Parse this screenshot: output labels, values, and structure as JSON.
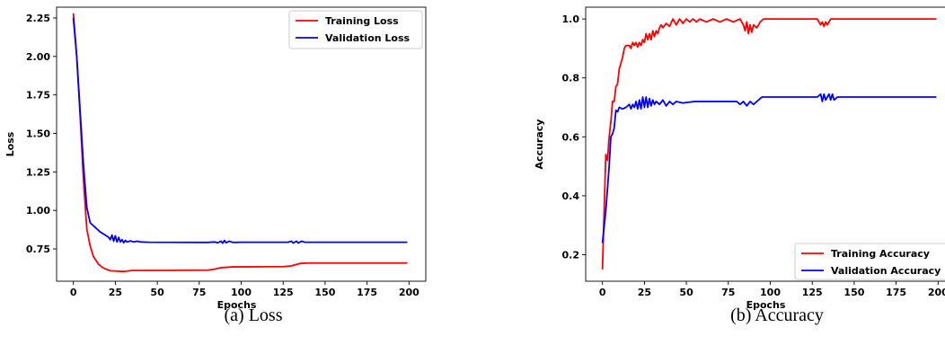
{
  "captions": {
    "a": "(a) Loss",
    "b": "(b) Accuracy"
  },
  "chart_data": [
    {
      "type": "line",
      "xlabel": "Epochs",
      "ylabel": "Loss",
      "xlim": [
        -10,
        210
      ],
      "ylim": [
        0.54,
        2.32
      ],
      "xticks": [
        0,
        25,
        50,
        75,
        100,
        125,
        150,
        175,
        200
      ],
      "yticks": [
        0.75,
        1.0,
        1.25,
        1.5,
        1.75,
        2.0,
        2.25
      ],
      "ytick_labels": [
        "0.75",
        "1.00",
        "1.25",
        "1.50",
        "1.75",
        "2.00",
        "2.25"
      ],
      "legend_position": "top-right",
      "series": [
        {
          "name": "Training Loss",
          "color": "#ff0000",
          "points": [
            [
              0,
              2.28
            ],
            [
              2,
              2.0
            ],
            [
              4,
              1.62
            ],
            [
              6,
              1.2
            ],
            [
              8,
              0.88
            ],
            [
              10,
              0.77
            ],
            [
              12,
              0.7
            ],
            [
              15,
              0.65
            ],
            [
              18,
              0.625
            ],
            [
              22,
              0.608
            ],
            [
              30,
              0.603
            ],
            [
              35,
              0.61
            ],
            [
              50,
              0.61
            ],
            [
              80,
              0.612
            ],
            [
              84,
              0.618
            ],
            [
              88,
              0.628
            ],
            [
              95,
              0.633
            ],
            [
              125,
              0.635
            ],
            [
              130,
              0.64
            ],
            [
              135,
              0.655
            ],
            [
              140,
              0.658
            ],
            [
              199,
              0.658
            ]
          ]
        },
        {
          "name": "Validation Loss",
          "color": "#0000ff",
          "points": [
            [
              0,
              2.25
            ],
            [
              2,
              2.0
            ],
            [
              4,
              1.65
            ],
            [
              6,
              1.3
            ],
            [
              8,
              1.02
            ],
            [
              10,
              0.92
            ],
            [
              13,
              0.89
            ],
            [
              16,
              0.86
            ],
            [
              19,
              0.84
            ],
            [
              21,
              0.825
            ],
            [
              22,
              0.81
            ],
            [
              23,
              0.84
            ],
            [
              24,
              0.8
            ],
            [
              25,
              0.835
            ],
            [
              26,
              0.795
            ],
            [
              27,
              0.825
            ],
            [
              28,
              0.795
            ],
            [
              29,
              0.81
            ],
            [
              30,
              0.79
            ],
            [
              31,
              0.805
            ],
            [
              32,
              0.795
            ],
            [
              34,
              0.802
            ],
            [
              36,
              0.795
            ],
            [
              38,
              0.8
            ],
            [
              40,
              0.795
            ],
            [
              45,
              0.793
            ],
            [
              80,
              0.792
            ],
            [
              84,
              0.795
            ],
            [
              86,
              0.79
            ],
            [
              88,
              0.8
            ],
            [
              89,
              0.787
            ],
            [
              90,
              0.805
            ],
            [
              91,
              0.79
            ],
            [
              93,
              0.8
            ],
            [
              95,
              0.792
            ],
            [
              100,
              0.793
            ],
            [
              128,
              0.793
            ],
            [
              130,
              0.8
            ],
            [
              131,
              0.788
            ],
            [
              133,
              0.8
            ],
            [
              134,
              0.788
            ],
            [
              136,
              0.8
            ],
            [
              138,
              0.793
            ],
            [
              199,
              0.793
            ]
          ]
        }
      ]
    },
    {
      "type": "line",
      "xlabel": "Epochs",
      "ylabel": "Accuracy",
      "xlim": [
        -10,
        210
      ],
      "ylim": [
        0.11,
        1.04
      ],
      "xticks": [
        0,
        25,
        50,
        75,
        100,
        125,
        150,
        175,
        200
      ],
      "yticks": [
        0.2,
        0.4,
        0.6,
        0.8,
        1.0
      ],
      "ytick_labels": [
        "0.2",
        "0.4",
        "0.6",
        "0.8",
        "1.0"
      ],
      "legend_position": "bottom-right",
      "series": [
        {
          "name": "Training Accuracy",
          "color": "#ff0000",
          "points": [
            [
              0,
              0.15
            ],
            [
              1,
              0.35
            ],
            [
              2,
              0.54
            ],
            [
              3,
              0.52
            ],
            [
              4,
              0.6
            ],
            [
              5,
              0.65
            ],
            [
              6,
              0.72
            ],
            [
              7,
              0.72
            ],
            [
              8,
              0.77
            ],
            [
              9,
              0.78
            ],
            [
              10,
              0.83
            ],
            [
              11,
              0.85
            ],
            [
              12,
              0.87
            ],
            [
              13,
              0.9
            ],
            [
              14,
              0.91
            ],
            [
              16,
              0.91
            ],
            [
              17,
              0.9
            ],
            [
              18,
              0.92
            ],
            [
              19,
              0.91
            ],
            [
              20,
              0.92
            ],
            [
              21,
              0.905
            ],
            [
              22,
              0.92
            ],
            [
              23,
              0.91
            ],
            [
              24,
              0.93
            ],
            [
              25,
              0.92
            ],
            [
              26,
              0.95
            ],
            [
              27,
              0.93
            ],
            [
              28,
              0.95
            ],
            [
              29,
              0.93
            ],
            [
              30,
              0.96
            ],
            [
              31,
              0.94
            ],
            [
              32,
              0.96
            ],
            [
              33,
              0.95
            ],
            [
              34,
              0.97
            ],
            [
              35,
              0.98
            ],
            [
              36,
              0.97
            ],
            [
              38,
              0.985
            ],
            [
              40,
              0.975
            ],
            [
              42,
              1.0
            ],
            [
              44,
              0.98
            ],
            [
              46,
              1.0
            ],
            [
              48,
              0.985
            ],
            [
              50,
              1.0
            ],
            [
              52,
              0.99
            ],
            [
              54,
              1.0
            ],
            [
              56,
              0.99
            ],
            [
              58,
              1.0
            ],
            [
              62,
              0.99
            ],
            [
              66,
              1.0
            ],
            [
              70,
              0.99
            ],
            [
              74,
              1.0
            ],
            [
              78,
              0.99
            ],
            [
              82,
              1.0
            ],
            [
              84,
              0.98
            ],
            [
              85,
              0.96
            ],
            [
              86,
              0.99
            ],
            [
              87,
              0.95
            ],
            [
              88,
              0.98
            ],
            [
              89,
              0.955
            ],
            [
              90,
              0.98
            ],
            [
              92,
              0.97
            ],
            [
              94,
              0.99
            ],
            [
              96,
              1.0
            ],
            [
              128,
              1.0
            ],
            [
              130,
              0.98
            ],
            [
              131,
              0.99
            ],
            [
              132,
              0.975
            ],
            [
              133,
              0.99
            ],
            [
              134,
              0.98
            ],
            [
              136,
              1.0
            ],
            [
              199,
              1.0
            ]
          ]
        },
        {
          "name": "Validation Accuracy",
          "color": "#0000ff",
          "points": [
            [
              0,
              0.24
            ],
            [
              2,
              0.35
            ],
            [
              4,
              0.5
            ],
            [
              5,
              0.6
            ],
            [
              6,
              0.61
            ],
            [
              7,
              0.63
            ],
            [
              8,
              0.69
            ],
            [
              9,
              0.685
            ],
            [
              10,
              0.7
            ],
            [
              12,
              0.695
            ],
            [
              14,
              0.7
            ],
            [
              16,
              0.71
            ],
            [
              17,
              0.695
            ],
            [
              18,
              0.71
            ],
            [
              19,
              0.7
            ],
            [
              20,
              0.72
            ],
            [
              21,
              0.695
            ],
            [
              22,
              0.725
            ],
            [
              23,
              0.695
            ],
            [
              24,
              0.735
            ],
            [
              25,
              0.7
            ],
            [
              26,
              0.735
            ],
            [
              27,
              0.7
            ],
            [
              28,
              0.73
            ],
            [
              29,
              0.705
            ],
            [
              30,
              0.725
            ],
            [
              31,
              0.71
            ],
            [
              32,
              0.72
            ],
            [
              34,
              0.71
            ],
            [
              36,
              0.725
            ],
            [
              38,
              0.705
            ],
            [
              40,
              0.72
            ],
            [
              42,
              0.71
            ],
            [
              44,
              0.72
            ],
            [
              48,
              0.715
            ],
            [
              55,
              0.72
            ],
            [
              80,
              0.72
            ],
            [
              82,
              0.71
            ],
            [
              84,
              0.72
            ],
            [
              86,
              0.705
            ],
            [
              88,
              0.72
            ],
            [
              90,
              0.71
            ],
            [
              92,
              0.72
            ],
            [
              95,
              0.735
            ],
            [
              128,
              0.735
            ],
            [
              130,
              0.745
            ],
            [
              131,
              0.72
            ],
            [
              132,
              0.745
            ],
            [
              133,
              0.725
            ],
            [
              135,
              0.745
            ],
            [
              136,
              0.725
            ],
            [
              137,
              0.745
            ],
            [
              138,
              0.725
            ],
            [
              140,
              0.735
            ],
            [
              199,
              0.735
            ]
          ]
        }
      ]
    }
  ]
}
